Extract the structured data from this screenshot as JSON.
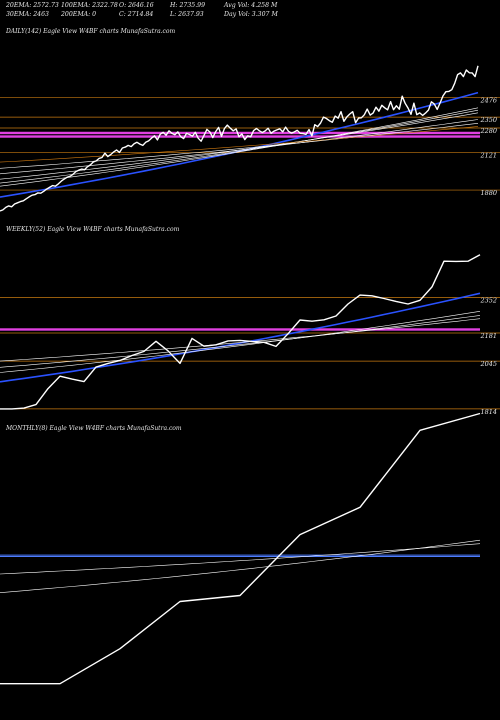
{
  "header": {
    "row1": [
      {
        "id": "ema20",
        "text": "20EMA: 2572.73"
      },
      {
        "id": "ema100",
        "text": "100EMA: 2322.78"
      },
      {
        "id": "open",
        "text": "O: 2646.16"
      },
      {
        "id": "high",
        "text": "H: 2735.99"
      },
      {
        "id": "avgvol",
        "text": "Avg Vol: 4.258  M"
      }
    ],
    "row2": [
      {
        "id": "ema30",
        "text": "30EMA: 2463"
      },
      {
        "id": "ema200",
        "text": "200EMA: 0"
      },
      {
        "id": "close",
        "text": "C: 2714.84"
      },
      {
        "id": "low",
        "text": "L: 2637.93"
      },
      {
        "id": "dayvol",
        "text": "Day Vol: 3.307  M"
      }
    ]
  },
  "chart_data": [
    {
      "type": "line",
      "title": "DAILY(142) Eagle   View  W4BF charts MunafaSutra.com",
      "ylim": [
        1700,
        2860
      ],
      "levels": [
        {
          "value": 2476,
          "label": "2476",
          "color": "#c87a10"
        },
        {
          "value": 2350,
          "label": "2350",
          "color": "#c87a10"
        },
        {
          "value": 2280,
          "label": "2280",
          "color": "#c87a10"
        },
        {
          "value": 2121,
          "label": "2121",
          "color": "#c87a10"
        },
        {
          "value": 1880,
          "label": "1880",
          "color": "#c87a10"
        }
      ],
      "magenta": [
        2248,
        2225
      ],
      "price": [
        1745,
        1752,
        1768,
        1778,
        1772,
        1790,
        1798,
        1806,
        1811,
        1824,
        1836,
        1847,
        1851,
        1862,
        1860,
        1872,
        1886,
        1897,
        1909,
        1905,
        1920,
        1937,
        1951,
        1962,
        1969,
        1981,
        1999,
        2008,
        2015,
        2011,
        2030,
        2042,
        2061,
        2068,
        2084,
        2090,
        2118,
        2096,
        2109,
        2126,
        2138,
        2123,
        2151,
        2157,
        2168,
        2160,
        2178,
        2188,
        2176,
        2168,
        2188,
        2197,
        2215,
        2230,
        2203,
        2241,
        2252,
        2233,
        2262,
        2245,
        2237,
        2255,
        2224,
        2212,
        2245,
        2238,
        2227,
        2252,
        2214,
        2195,
        2232,
        2271,
        2254,
        2218,
        2257,
        2284,
        2226,
        2276,
        2299,
        2279,
        2262,
        2274,
        2224,
        2242,
        2205,
        2230,
        2223,
        2263,
        2277,
        2262,
        2251,
        2261,
        2279,
        2246,
        2260,
        2268,
        2275,
        2255,
        2286,
        2259,
        2247,
        2255,
        2265,
        2246,
        2244,
        2239,
        2270,
        2229,
        2301,
        2289,
        2312,
        2350,
        2341,
        2327,
        2317,
        2357,
        2343,
        2385,
        2323,
        2351,
        2370,
        2385,
        2314,
        2344,
        2346,
        2365,
        2402,
        2363,
        2376,
        2414,
        2388,
        2426,
        2410,
        2397,
        2450,
        2398,
        2423,
        2401,
        2485,
        2440,
        2409,
        2368,
        2440,
        2366,
        2377,
        2361,
        2376,
        2396,
        2449,
        2434,
        2400,
        2442,
        2487,
        2514,
        2516,
        2527,
        2568,
        2624,
        2635,
        2611,
        2654,
        2636,
        2635,
        2611,
        2681
      ],
      "series": [
        {
          "role": "ema-fast",
          "color": "#2a52ff",
          "width": 1.6,
          "from": 1835,
          "to": 2508
        },
        {
          "role": "ema-slow",
          "color": "#ffffff",
          "width": 0.6,
          "from": 1905,
          "to": 2410
        },
        {
          "role": "ema-slow",
          "color": "#ffffff",
          "width": 0.6,
          "from": 1925,
          "to": 2395
        },
        {
          "role": "ema-slow",
          "color": "#ffffff",
          "width": 0.6,
          "from": 1950,
          "to": 2378
        },
        {
          "role": "ema-slow",
          "color": "#ffffff",
          "width": 0.6,
          "from": 1985,
          "to": 2335
        },
        {
          "role": "ema-slow",
          "color": "#ffffff",
          "width": 0.6,
          "from": 2020,
          "to": 2310
        },
        {
          "role": "ema-slow",
          "color": "#d07a10",
          "width": 0.6,
          "from": 2060,
          "to": 2290
        }
      ]
    },
    {
      "type": "line",
      "title": "WEEKLY(52) Eagle   View  W4BF charts MunafaSutra.com",
      "ylim": [
        1770,
        2650
      ],
      "levels": [
        {
          "value": 2352,
          "label": "2352",
          "color": "#c87a10"
        },
        {
          "value": 2181,
          "label": "2181",
          "color": "#c87a10"
        },
        {
          "value": 2045,
          "label": "2045",
          "color": "#c87a10"
        },
        {
          "value": 1814,
          "label": "1814",
          "color": "#c87a10"
        }
      ],
      "magenta": [
        2198
      ],
      "price": [
        1814,
        1814,
        1818,
        1835,
        1912,
        1972,
        1958,
        1946,
        2016,
        2034,
        2048,
        2072,
        2092,
        2141,
        2095,
        2034,
        2155,
        2117,
        2124,
        2143,
        2145,
        2140,
        2136,
        2116,
        2177,
        2244,
        2238,
        2245,
        2263,
        2321,
        2364,
        2361,
        2348,
        2334,
        2321,
        2339,
        2404,
        2528,
        2527,
        2528,
        2559
      ],
      "series": [
        {
          "role": "ema-fast",
          "color": "#2a52ff",
          "width": 1.6,
          "from": 1945,
          "to": 2373
        },
        {
          "role": "ema-slow",
          "color": "#ffffff",
          "width": 0.6,
          "from": 1990,
          "to": 2286
        },
        {
          "role": "ema-slow",
          "color": "#ffffff",
          "width": 0.6,
          "from": 2015,
          "to": 2266
        },
        {
          "role": "ema-slow",
          "color": "#ffffff",
          "width": 0.6,
          "from": 2045,
          "to": 2250
        }
      ]
    },
    {
      "type": "line",
      "title": "MONTHLY(8) Eagle   View  W4BF charts MunafaSutra.com",
      "ylim": [
        1700,
        2900
      ],
      "levels": [],
      "magenta": [],
      "blue_hlines": [
        2375,
        2381
      ],
      "price": [
        1830,
        1830,
        1980,
        2182,
        2208,
        2469,
        2586,
        2916,
        2988
      ],
      "series": [
        {
          "role": "ema-slow",
          "color": "#ffffff",
          "width": 0.6,
          "from": 2220,
          "to": 2445
        },
        {
          "role": "ema-slow",
          "color": "#ffffff",
          "width": 0.6,
          "from": 2300,
          "to": 2430
        }
      ]
    }
  ]
}
